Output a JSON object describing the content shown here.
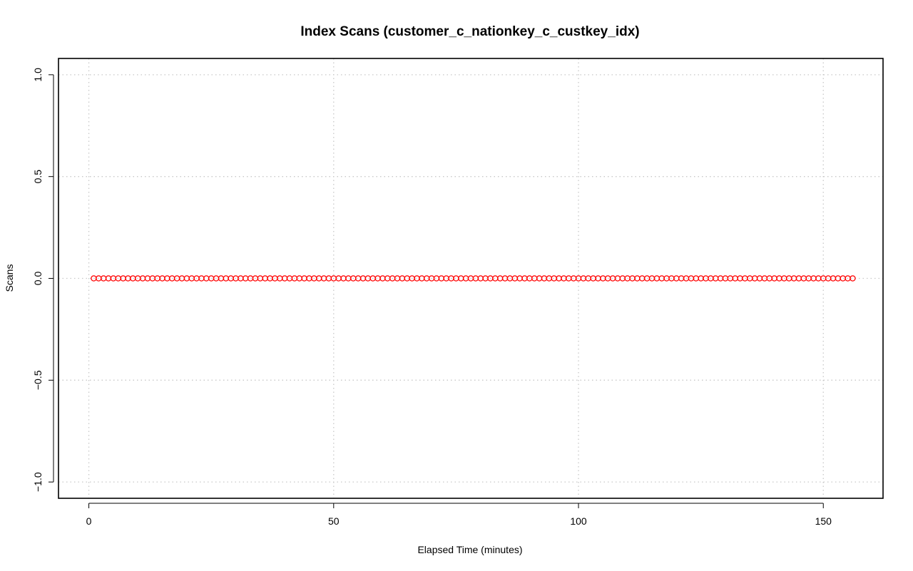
{
  "chart_data": {
    "type": "scatter",
    "title": "Index Scans (customer_c_nationkey_c_custkey_idx)",
    "xlabel": "Elapsed Time (minutes)",
    "ylabel": "Scans",
    "xlim": [
      -6.2,
      162.2
    ],
    "ylim": [
      -1.08,
      1.08
    ],
    "xticks": [
      0,
      50,
      100,
      150
    ],
    "xtick_labels": [
      "0",
      "50",
      "100",
      "150"
    ],
    "yticks": [
      -1.0,
      -0.5,
      0.0,
      0.5,
      1.0
    ],
    "ytick_labels": [
      "−1.0",
      "−0.5",
      "0.0",
      "0.5",
      "1.0"
    ],
    "grid": true,
    "marker": "open-circle",
    "series": [
      {
        "color": "#ff0000",
        "x_start": 1,
        "x_end": 156,
        "x_step": 1,
        "y_constant": 0
      }
    ]
  }
}
